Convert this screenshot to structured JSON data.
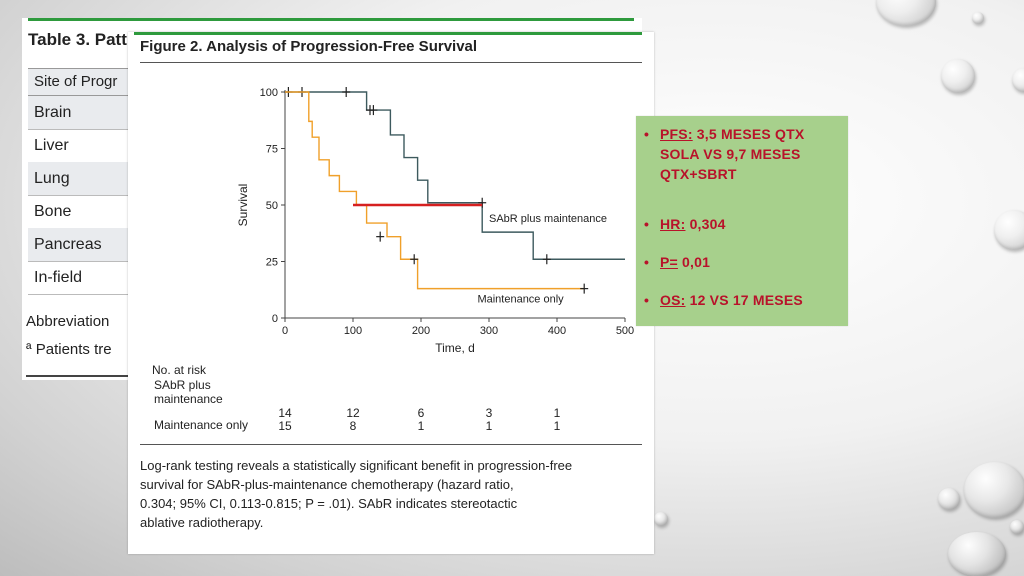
{
  "table": {
    "title": "Table 3. Patt",
    "header": "Site of Progr",
    "rows": [
      "Brain",
      "Liver",
      "Lung",
      "Bone",
      "Pancreas",
      "In-field"
    ],
    "footer_1": "Abbreviation",
    "footer_2": "ª Patients tre"
  },
  "figure": {
    "title": "Figure 2. Analysis of Progression-Free Survival",
    "risk_title": "No. at risk",
    "risk_group_1": "SAbR plus\nmaintenance",
    "risk_group_1_line1": "SAbR plus",
    "risk_group_1_line2": "maintenance",
    "risk_group_2": "Maintenance only",
    "caption_lines": [
      "Log-rank testing reveals a statistically significant benefit in progression-free",
      "survival for SAbR-plus-maintenance chemotherapy (hazard ratio,",
      "0.304; 95% CI, 0.113-0.815; P = .01). SAbR indicates stereotactic",
      "ablative radiotherapy."
    ]
  },
  "chart_data": {
    "type": "line",
    "xlabel": "Time, d",
    "ylabel": "Survival",
    "xlim": [
      0,
      500
    ],
    "ylim": [
      0,
      100
    ],
    "xticks": [
      0,
      100,
      200,
      300,
      400,
      500
    ],
    "yticks": [
      0,
      25,
      50,
      75,
      100
    ],
    "grid": false,
    "series": [
      {
        "name": "SAbR plus maintenance",
        "color": "#3d5a5e",
        "step": true,
        "x": [
          0,
          120,
          155,
          175,
          195,
          210,
          290,
          365,
          500
        ],
        "y": [
          100,
          92,
          81,
          71,
          61,
          51,
          38,
          26,
          26
        ],
        "censored": [
          [
            5,
            100
          ],
          [
            25,
            100
          ],
          [
            90,
            100
          ],
          [
            125,
            92
          ],
          [
            130,
            92
          ],
          [
            290,
            51
          ],
          [
            385,
            26
          ]
        ]
      },
      {
        "name": "Maintenance only",
        "color": "#f0a02a",
        "step": true,
        "x": [
          0,
          35,
          40,
          50,
          65,
          80,
          105,
          120,
          150,
          170,
          195,
          440
        ],
        "y": [
          100,
          87,
          80,
          70,
          63,
          56,
          50,
          42,
          36,
          26,
          13,
          13
        ],
        "censored": [
          [
            140,
            36
          ],
          [
            190,
            26
          ],
          [
            440,
            13
          ]
        ]
      }
    ],
    "annotation": {
      "type": "median-line",
      "color": "#d62020",
      "y": 50,
      "x": [
        100,
        290
      ]
    },
    "at_risk": {
      "times": [
        0,
        100,
        200,
        300,
        400
      ],
      "groups": [
        {
          "name": "SAbR plus maintenance",
          "values": [
            14,
            12,
            6,
            3,
            1
          ]
        },
        {
          "name": "Maintenance only",
          "values": [
            15,
            8,
            1,
            1,
            1
          ]
        }
      ]
    }
  },
  "bullets": [
    {
      "key": "PFS:",
      "lines": [
        " 3,5 MESES QTX",
        "SOLA VS 9,7 MESES",
        "QTX+SBRT"
      ]
    },
    {
      "key": "HR:",
      "lines": [
        " 0,304"
      ]
    },
    {
      "key": "P=",
      "lines": [
        " 0,01"
      ]
    },
    {
      "key": "OS:",
      "lines": [
        " 12 VS 17 MESES"
      ]
    }
  ],
  "bullet_glyph": "•"
}
